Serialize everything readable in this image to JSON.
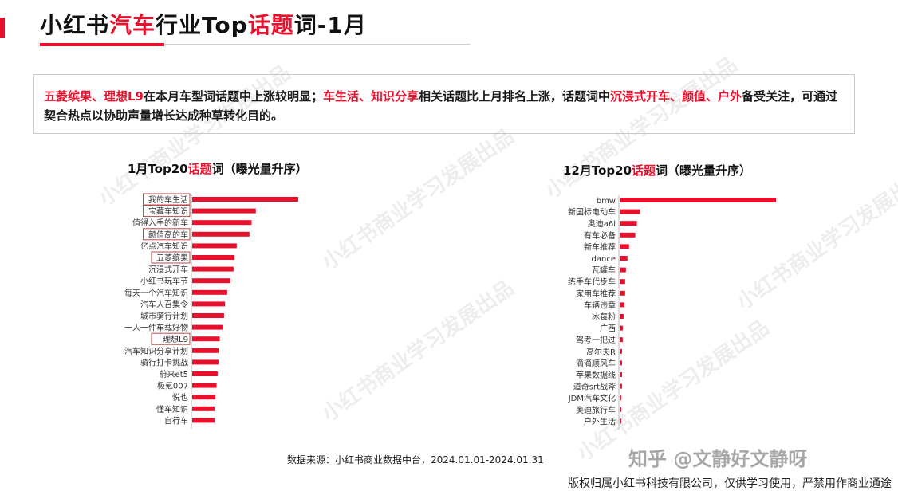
{
  "title": {
    "part1": "小红书",
    "part2": "汽车",
    "part3": "行业Top",
    "part4": "话题",
    "part5": "词-1月"
  },
  "summary": {
    "s1": "五菱缤果、理想L9",
    "s2": "在本月车型词话题中上涨较明显；",
    "s3": "车生活、知识分享",
    "s4": "相关话题比上月排名上涨，话题词中",
    "s5": "沉浸式开车、颜值、户外",
    "s6": "备受关注，可通过契合热点以协助声量增长达成种草转化目的。"
  },
  "watermark_text": "小红书商业学习发展出品",
  "source_text": "数据来源：小红书商业数据中台，2024.01.01-2024.01.31",
  "copyright_text": "版权归属小红书科技有限公司，仅供学习使用，严禁用作商业通途",
  "zhihu_text": "知乎 @文静好文静呀",
  "colors": {
    "accent": "#e8112d",
    "bar": "#e8112d",
    "box_border": "#b84a4a"
  },
  "chart_data": [
    {
      "type": "bar",
      "orientation": "horizontal",
      "title_parts": [
        "1月Top20",
        "话题",
        "词（曝光量升序）"
      ],
      "categories": [
        "我的车生活",
        "宝藏车知识",
        "值得入手的新车",
        "颜值高的车",
        "亿点汽车知识",
        "五菱缤果",
        "沉浸式开车",
        "小红书玩车节",
        "每天一个汽车知识",
        "汽车人召集令",
        "城市骑行计划",
        "一人一件车载好物",
        "理想L9",
        "汽车知识分享计划",
        "骑行打卡挑战",
        "蔚来et5",
        "极氪007",
        "悦也",
        "懂车知识",
        "自行车"
      ],
      "values": [
        100,
        60,
        56,
        54,
        42,
        40,
        39,
        36,
        33,
        31,
        30,
        29,
        26,
        25,
        25,
        24,
        23,
        22,
        21,
        21
      ],
      "highlighted": [
        "我的车生活",
        "宝藏车知识",
        "颜值高的车",
        "五菱缤果",
        "理想L9"
      ],
      "xlim": [
        0,
        100
      ]
    },
    {
      "type": "bar",
      "orientation": "horizontal",
      "title_parts": [
        "12月Top20",
        "话题",
        "词（曝光量升序）"
      ],
      "categories": [
        "bmw",
        "新国标电动车",
        "奥迪a6l",
        "有车必备",
        "新车推荐",
        "dance",
        "瓦罐车",
        "练手车代步车",
        "家用车推荐",
        "车辆违章",
        "冰莓粉",
        "广西",
        "驾考一把过",
        "高尔夫R",
        "滴滴顺风车",
        "苹果数据线",
        "道奇srt战斧",
        "JDM汽车文化",
        "奥迪旅行车",
        "户外生活"
      ],
      "values": [
        100,
        13,
        11,
        10,
        6,
        5,
        4,
        3.5,
        3.5,
        3,
        2.5,
        2,
        2,
        1.5,
        1.5,
        1.5,
        1.5,
        1,
        1,
        1
      ],
      "highlighted": [],
      "xlim": [
        0,
        100
      ]
    }
  ]
}
